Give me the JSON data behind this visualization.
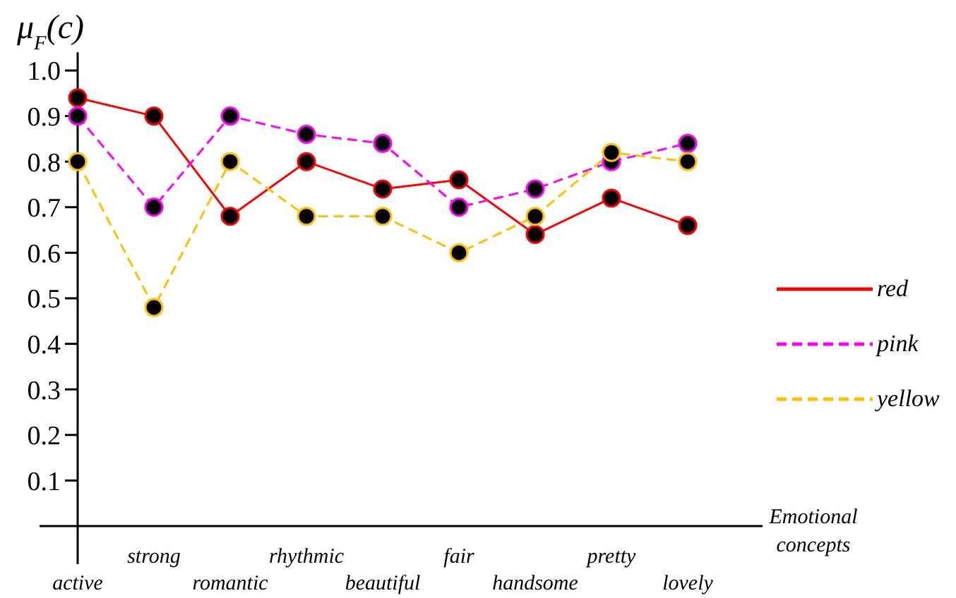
{
  "chart_data": {
    "type": "line",
    "ylabel": "μ$_{F}$(c)",
    "xlabel": "Emotional concepts",
    "categories": [
      "active",
      "strong",
      "romantic",
      "rhythmic",
      "beautiful",
      "fair",
      "handsome",
      "pretty",
      "lovely"
    ],
    "series": [
      {
        "name": "red",
        "color": "#ff0000",
        "line_style": "solid",
        "values": [
          0.94,
          0.9,
          0.68,
          0.8,
          0.74,
          0.76,
          0.64,
          0.72,
          0.66
        ]
      },
      {
        "name": "pink",
        "color": "#ff00ff",
        "line_style": "dashed",
        "values": [
          0.9,
          0.7,
          0.9,
          0.86,
          0.84,
          0.7,
          0.74,
          0.8,
          0.84
        ]
      },
      {
        "name": "yellow",
        "color": "#ffc000",
        "line_style": "dashed",
        "values": [
          0.8,
          0.48,
          0.8,
          0.68,
          0.68,
          0.6,
          0.68,
          0.82,
          0.8
        ]
      }
    ],
    "ylim": [
      0,
      1.04
    ],
    "yticks": [
      0.1,
      0.2,
      0.3,
      0.4,
      0.5,
      0.6,
      0.7,
      0.8,
      0.9,
      {
        "value": 1,
        "label": "1.0"
      }
    ],
    "marker": "circle",
    "legend": "right",
    "grid": false
  }
}
